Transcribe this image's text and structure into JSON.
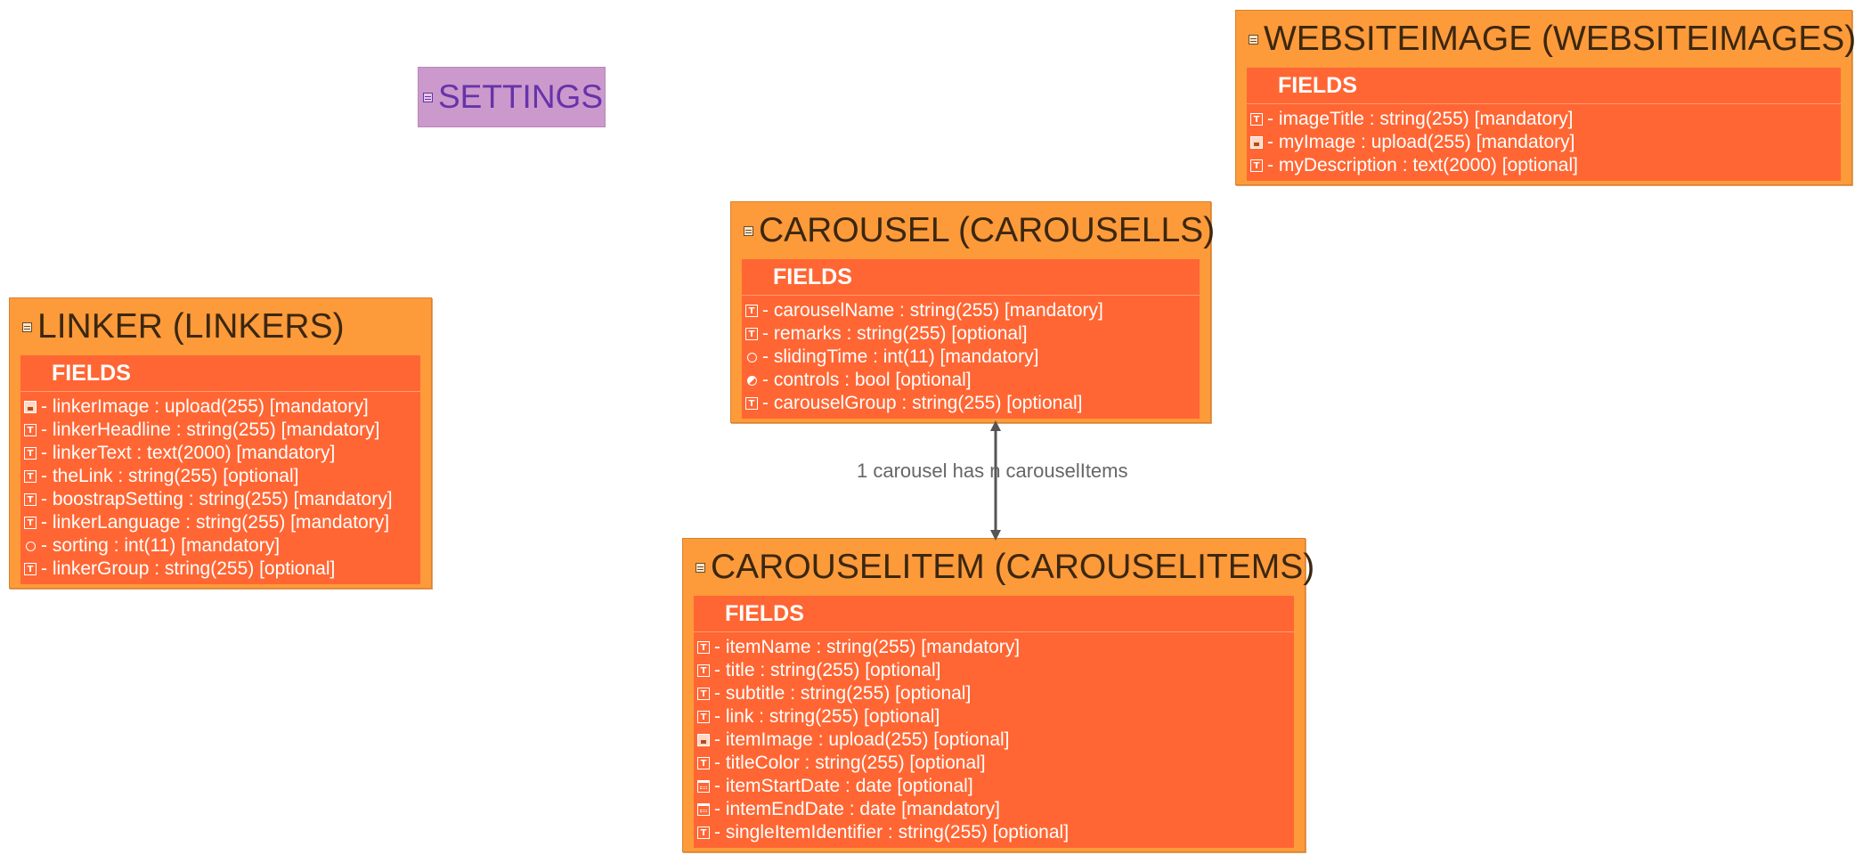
{
  "settings": {
    "title": "SETTINGS"
  },
  "relationship": {
    "label": "1 carousel has n carouselItems"
  },
  "entities": {
    "websiteimage": {
      "title": "WEBSITEIMAGE (WEBSITEIMAGES)",
      "fields_heading": "FIELDS",
      "fields": [
        {
          "icon": "text-field-icon",
          "text": "- imageTitle : string(255) [mandatory]"
        },
        {
          "icon": "upload-field-icon",
          "text": "- myImage : upload(255) [mandatory]"
        },
        {
          "icon": "textarea-field-icon",
          "text": "- myDescription : text(2000) [optional]"
        }
      ]
    },
    "carousel": {
      "title": "CAROUSEL (CAROUSELLS)",
      "fields_heading": "FIELDS",
      "fields": [
        {
          "icon": "text-field-icon",
          "text": "- carouselName : string(255) [mandatory]"
        },
        {
          "icon": "text-field-icon",
          "text": "- remarks : string(255) [optional]"
        },
        {
          "icon": "int-field-icon",
          "text": "- slidingTime : int(11) [mandatory]"
        },
        {
          "icon": "bool-field-icon",
          "text": "- controls : bool [optional]"
        },
        {
          "icon": "text-field-icon",
          "text": "- carouselGroup : string(255) [optional]"
        }
      ]
    },
    "linker": {
      "title": "LINKER (LINKERS)",
      "fields_heading": "FIELDS",
      "fields": [
        {
          "icon": "upload-field-icon",
          "text": "- linkerImage : upload(255) [mandatory]"
        },
        {
          "icon": "text-field-icon",
          "text": "- linkerHeadline : string(255) [mandatory]"
        },
        {
          "icon": "textarea-field-icon",
          "text": "- linkerText : text(2000) [mandatory]"
        },
        {
          "icon": "text-field-icon",
          "text": "- theLink : string(255) [optional]"
        },
        {
          "icon": "text-field-icon",
          "text": "- boostrapSetting : string(255) [mandatory]"
        },
        {
          "icon": "text-field-icon",
          "text": "- linkerLanguage : string(255) [mandatory]"
        },
        {
          "icon": "int-field-icon",
          "text": "- sorting : int(11) [mandatory]"
        },
        {
          "icon": "text-field-icon",
          "text": "- linkerGroup : string(255) [optional]"
        }
      ]
    },
    "carouselitem": {
      "title": "CAROUSELITEM (CAROUSELITEMS)",
      "fields_heading": "FIELDS",
      "fields": [
        {
          "icon": "text-field-icon",
          "text": "- itemName : string(255) [mandatory]"
        },
        {
          "icon": "text-field-icon",
          "text": "- title : string(255) [optional]"
        },
        {
          "icon": "text-field-icon",
          "text": "- subtitle : string(255) [optional]"
        },
        {
          "icon": "text-field-icon",
          "text": "- link : string(255) [optional]"
        },
        {
          "icon": "upload-field-icon",
          "text": "- itemImage : upload(255) [optional]"
        },
        {
          "icon": "text-field-icon",
          "text": "- titleColor : string(255) [optional]"
        },
        {
          "icon": "date-field-icon",
          "text": "- itemStartDate : date [optional]"
        },
        {
          "icon": "date-field-icon",
          "text": "- intemEndDate : date [mandatory]"
        },
        {
          "icon": "text-field-icon",
          "text": "- singleItemIdentifier : string(255) [optional]"
        }
      ]
    }
  },
  "colors": {
    "entity_background": "#fd9a3a",
    "fields_background": "#ff6633",
    "settings_background": "#cc99cc",
    "settings_text": "#6633aa",
    "connector": "#555555"
  }
}
